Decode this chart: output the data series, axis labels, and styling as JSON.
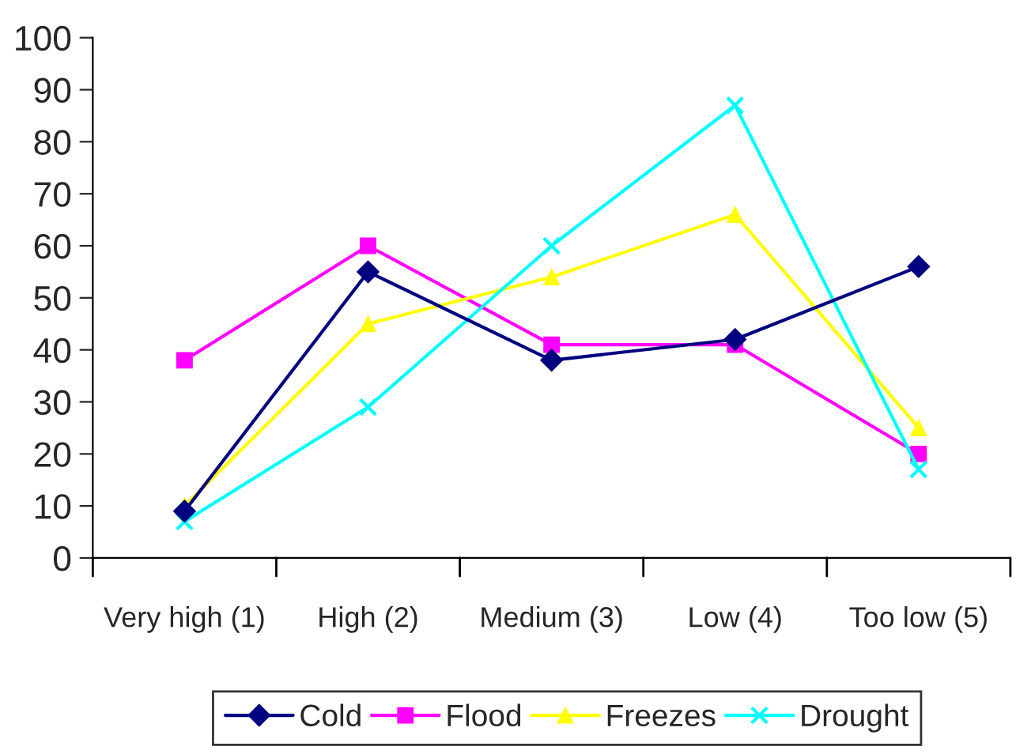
{
  "chart_data": {
    "type": "line",
    "categories": [
      "Very high (1)",
      "High (2)",
      "Medium (3)",
      "Low (4)",
      "Too low (5)"
    ],
    "series": [
      {
        "name": "Cold",
        "color": "#000080",
        "marker": "diamond",
        "values": [
          9,
          55,
          38,
          42,
          56
        ]
      },
      {
        "name": "Flood",
        "color": "#ff00ff",
        "marker": "square",
        "values": [
          38,
          60,
          41,
          41,
          20
        ]
      },
      {
        "name": "Freezes",
        "color": "#ffff00",
        "marker": "triangle",
        "values": [
          10,
          45,
          54,
          66,
          25
        ]
      },
      {
        "name": "Drought",
        "color": "#00ffff",
        "marker": "cross",
        "values": [
          7,
          29,
          60,
          87,
          17
        ]
      }
    ],
    "ylim": [
      0,
      100
    ],
    "yticks": [
      0,
      10,
      20,
      30,
      40,
      50,
      60,
      70,
      80,
      90,
      100
    ],
    "grid": false,
    "legend": "bottom",
    "line_style": "solid"
  }
}
